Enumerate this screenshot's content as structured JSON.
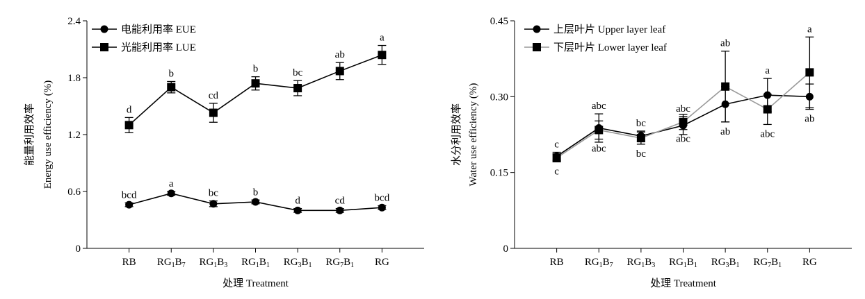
{
  "chart_data": [
    {
      "type": "line",
      "categories": [
        "RB",
        "RG1B7",
        "RG1B3",
        "RG1B1",
        "RG3B1",
        "RG7B1",
        "RG"
      ],
      "category_labels": [
        {
          "base": "RB",
          "parts": []
        },
        {
          "base": "RG",
          "parts": [
            [
              "1",
              "B"
            ],
            [
              "7",
              ""
            ]
          ]
        },
        {
          "base": "RG",
          "parts": [
            [
              "1",
              "B"
            ],
            [
              "3",
              ""
            ]
          ]
        },
        {
          "base": "RG",
          "parts": [
            [
              "1",
              "B"
            ],
            [
              "1",
              ""
            ]
          ]
        },
        {
          "base": "RG",
          "parts": [
            [
              "3",
              "B"
            ],
            [
              "1",
              ""
            ]
          ]
        },
        {
          "base": "RG",
          "parts": [
            [
              "7",
              "B"
            ],
            [
              "1",
              ""
            ]
          ]
        },
        {
          "base": "RG",
          "parts": []
        }
      ],
      "xlabel": "处理 Treatment",
      "ylabel_cn": "能量利用效率",
      "ylabel_en": "Energy use efficiency (%)",
      "ylim": [
        0,
        2.4
      ],
      "yticks": [
        "0",
        "0.6",
        "1.2",
        "1.8",
        "2.4"
      ],
      "legend_position": "top-left",
      "series": [
        {
          "name": "电能利用率 EUE",
          "marker": "circle",
          "color": "#000000",
          "values": [
            0.46,
            0.58,
            0.47,
            0.49,
            0.4,
            0.4,
            0.43
          ],
          "errors": [
            0.02,
            0.02,
            0.03,
            0.02,
            0.02,
            0.02,
            0.02
          ],
          "letters": [
            "bcd",
            "a",
            "bc",
            "b",
            "d",
            "cd",
            "bcd"
          ],
          "letter_pos": "above"
        },
        {
          "name": "光能利用率 LUE",
          "marker": "square",
          "color": "#000000",
          "values": [
            1.3,
            1.7,
            1.43,
            1.74,
            1.69,
            1.87,
            2.04
          ],
          "errors": [
            0.08,
            0.06,
            0.1,
            0.07,
            0.08,
            0.09,
            0.1
          ],
          "letters": [
            "d",
            "b",
            "cd",
            "b",
            "bc",
            "ab",
            "a"
          ],
          "letter_pos": "above"
        }
      ]
    },
    {
      "type": "line",
      "categories": [
        "RB",
        "RG1B7",
        "RG1B3",
        "RG1B1",
        "RG3B1",
        "RG7B1",
        "RG"
      ],
      "category_labels": [
        {
          "base": "RB",
          "parts": []
        },
        {
          "base": "RG",
          "parts": [
            [
              "1",
              "B"
            ],
            [
              "7",
              ""
            ]
          ]
        },
        {
          "base": "RG",
          "parts": [
            [
              "1",
              "B"
            ],
            [
              "3",
              ""
            ]
          ]
        },
        {
          "base": "RG",
          "parts": [
            [
              "1",
              "B"
            ],
            [
              "1",
              ""
            ]
          ]
        },
        {
          "base": "RG",
          "parts": [
            [
              "3",
              "B"
            ],
            [
              "1",
              ""
            ]
          ]
        },
        {
          "base": "RG",
          "parts": [
            [
              "7",
              "B"
            ],
            [
              "1",
              ""
            ]
          ]
        },
        {
          "base": "RG",
          "parts": []
        }
      ],
      "xlabel": "处理 Treatment",
      "ylabel_cn": "水分利用效率",
      "ylabel_en": "Water use efficiency (%)",
      "ylim": [
        0,
        0.45
      ],
      "yticks": [
        "0",
        "0.15",
        "0.30",
        "0.45"
      ],
      "legend_position": "top-left",
      "series": [
        {
          "name": "上层叶片 Upper layer leaf",
          "marker": "circle",
          "color": "#000000",
          "values": [
            0.182,
            0.238,
            0.222,
            0.243,
            0.285,
            0.303,
            0.3
          ],
          "errors": [
            0.008,
            0.028,
            0.01,
            0.018,
            0.035,
            0.033,
            0.025
          ],
          "letters": [
            "c",
            "abc",
            "bc",
            "abc",
            "ab",
            "a",
            "ab"
          ],
          "letter_pos": [
            "above",
            "above",
            "above",
            "above",
            "below",
            "above",
            "below"
          ]
        },
        {
          "name": "下层叶片 Lower layer leaf",
          "marker": "square",
          "color": "#999999",
          "values": [
            0.179,
            0.234,
            0.218,
            0.25,
            0.32,
            0.275,
            0.348
          ],
          "errors": [
            0.008,
            0.018,
            0.012,
            0.015,
            0.07,
            0.03,
            0.07
          ],
          "letters": [
            "c",
            "abc",
            "bc",
            "abc",
            "ab",
            "abc",
            "a"
          ],
          "letter_pos": [
            "below",
            "below",
            "below",
            "below",
            "above",
            "below",
            "above"
          ]
        }
      ]
    }
  ]
}
